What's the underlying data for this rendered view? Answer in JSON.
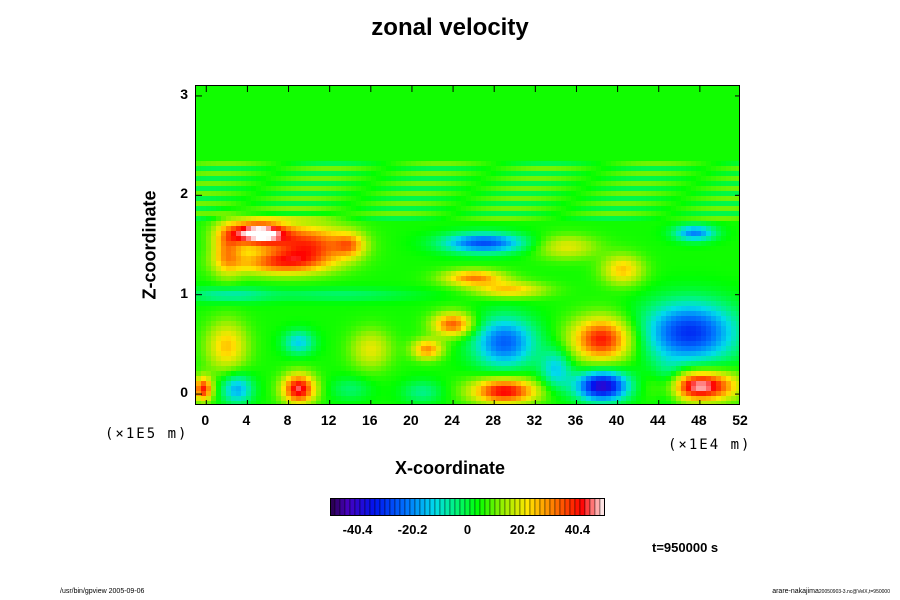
{
  "chart_data": {
    "type": "heatmap",
    "title": "zonal velocity",
    "xlabel": "X-coordinate",
    "ylabel": "Z-coordinate",
    "x_unit": "(×1E4 m)",
    "y_unit": "(×1E5 m)",
    "xlim": [
      -1,
      52
    ],
    "ylim": [
      -0.12,
      3.1
    ],
    "x_ticks": [
      "0",
      "4",
      "8",
      "12",
      "16",
      "20",
      "24",
      "28",
      "32",
      "36",
      "40",
      "44",
      "48",
      "52"
    ],
    "y_ticks": [
      "0",
      "1",
      "2",
      "3"
    ],
    "colorbar": {
      "min": -50.5,
      "max": 50.5,
      "tick_labels": [
        "-40.4",
        "-20.2",
        "0",
        "20.2",
        "40.4"
      ],
      "tick_values": [
        -40.4,
        -20.2,
        0,
        20.2,
        40.4
      ]
    },
    "background_value": 5,
    "features": [
      {
        "x": 5,
        "z": 1.62,
        "rx": 2.8,
        "rz": 0.12,
        "value": 48
      },
      {
        "x": 10,
        "z": 1.5,
        "rx": 4,
        "rz": 0.2,
        "value": 32
      },
      {
        "x": 7,
        "z": 1.32,
        "rx": 4.5,
        "rz": 0.12,
        "value": 26
      },
      {
        "x": 2,
        "z": 1.45,
        "rx": 1.5,
        "rz": 0.25,
        "value": 22
      },
      {
        "x": 14,
        "z": 1.5,
        "rx": 1.5,
        "rz": 0.12,
        "value": 18
      },
      {
        "x": 27,
        "z": 1.52,
        "rx": 4,
        "rz": 0.1,
        "value": -32
      },
      {
        "x": 26,
        "z": 1.17,
        "rx": 3,
        "rz": 0.08,
        "value": 26
      },
      {
        "x": 29.5,
        "z": 1.05,
        "rx": 3.5,
        "rz": 0.08,
        "value": 20
      },
      {
        "x": 35,
        "z": 1.48,
        "rx": 3,
        "rz": 0.12,
        "value": 15
      },
      {
        "x": 40.5,
        "z": 1.25,
        "rx": 2,
        "rz": 0.15,
        "value": 20
      },
      {
        "x": 47.5,
        "z": 1.62,
        "rx": 2,
        "rz": 0.08,
        "value": -26
      },
      {
        "x": 2,
        "z": 1.0,
        "rx": 4,
        "rz": 0.08,
        "value": -12
      },
      {
        "x": 13,
        "z": 1.0,
        "rx": 8,
        "rz": 0.07,
        "value": -8
      },
      {
        "x": 47,
        "z": 0.62,
        "rx": 4.5,
        "rz": 0.3,
        "value": -36
      },
      {
        "x": 38.5,
        "z": 0.55,
        "rx": 3,
        "rz": 0.22,
        "value": 36
      },
      {
        "x": 29,
        "z": 0.52,
        "rx": 3,
        "rz": 0.25,
        "value": -30
      },
      {
        "x": 24,
        "z": 0.7,
        "rx": 2,
        "rz": 0.12,
        "value": 30
      },
      {
        "x": 21.5,
        "z": 0.45,
        "rx": 1.5,
        "rz": 0.1,
        "value": 25
      },
      {
        "x": 9,
        "z": 0.52,
        "rx": 1.5,
        "rz": 0.12,
        "value": -18
      },
      {
        "x": 2,
        "z": 0.48,
        "rx": 2,
        "rz": 0.25,
        "value": 20
      },
      {
        "x": 16,
        "z": 0.45,
        "rx": 2,
        "rz": 0.2,
        "value": 15
      },
      {
        "x": 3,
        "z": 0.05,
        "rx": 1.5,
        "rz": 0.15,
        "value": -22
      },
      {
        "x": 9,
        "z": 0.05,
        "rx": 1.6,
        "rz": 0.15,
        "value": 40
      },
      {
        "x": -0.3,
        "z": 0.05,
        "rx": 0.9,
        "rz": 0.12,
        "value": 35
      },
      {
        "x": 29,
        "z": 0.03,
        "rx": 3.2,
        "rz": 0.13,
        "value": 38
      },
      {
        "x": 38.5,
        "z": 0.08,
        "rx": 2.5,
        "rz": 0.15,
        "value": -46
      },
      {
        "x": 48,
        "z": 0.08,
        "rx": 3.5,
        "rz": 0.15,
        "value": 45
      },
      {
        "x": 45,
        "z": 0.1,
        "rx": 1.5,
        "rz": 0.2,
        "value": -15
      },
      {
        "x": 34,
        "z": 0.25,
        "rx": 1.5,
        "rz": 0.2,
        "value": -18
      },
      {
        "x": 21,
        "z": 0.02,
        "rx": 2,
        "rz": 0.12,
        "value": -10
      },
      {
        "x": 14,
        "z": 0.05,
        "rx": 2,
        "rz": 0.12,
        "value": -8
      }
    ]
  },
  "timestamp": "t=950000 s",
  "footer_left": "/usr/bin/gpview 2005-09-06",
  "footer_right_main": "arare-nakajima",
  "footer_right_sub": "20050903-3.nc@VelX,t=950000"
}
